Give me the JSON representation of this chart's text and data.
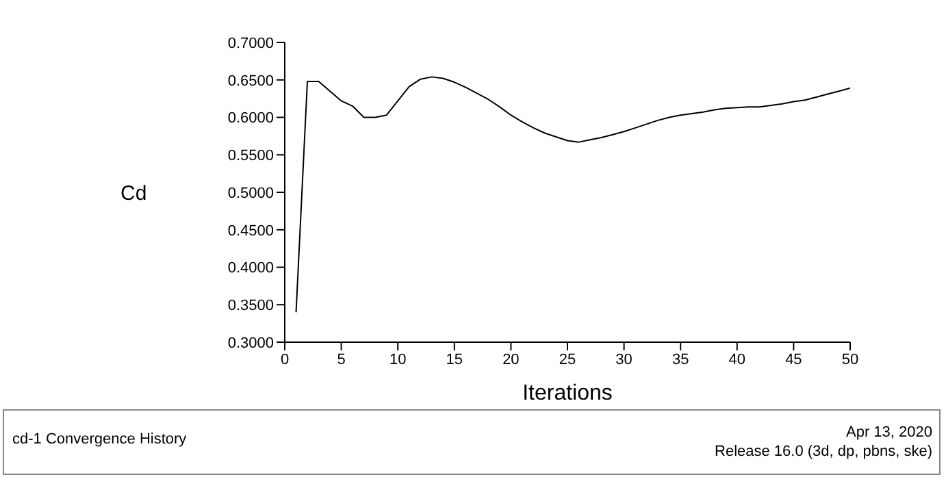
{
  "chart_data": {
    "type": "line",
    "xlabel": "Iterations",
    "ylabel": "Cd",
    "x": [
      1,
      2,
      3,
      4,
      5,
      6,
      7,
      8,
      9,
      10,
      11,
      12,
      13,
      14,
      15,
      16,
      17,
      18,
      19,
      20,
      21,
      22,
      23,
      24,
      25,
      26,
      27,
      28,
      29,
      30,
      31,
      32,
      33,
      34,
      35,
      36,
      37,
      38,
      39,
      40,
      41,
      42,
      43,
      44,
      45,
      46,
      47,
      48,
      49,
      50
    ],
    "series": [
      {
        "color": "#000000",
        "values": [
          0.34,
          0.648,
          0.648,
          0.635,
          0.622,
          0.615,
          0.6,
          0.6,
          0.603,
          0.622,
          0.641,
          0.651,
          0.654,
          0.652,
          0.647,
          0.64,
          0.632,
          0.624,
          0.614,
          0.603,
          0.594,
          0.586,
          0.579,
          0.574,
          0.569,
          0.567,
          0.57,
          0.573,
          0.577,
          0.581,
          0.586,
          0.591,
          0.596,
          0.6,
          0.603,
          0.605,
          0.607,
          0.61,
          0.612,
          0.613,
          0.614,
          0.614,
          0.616,
          0.618,
          0.621,
          0.623,
          0.627,
          0.631,
          0.635,
          0.639
        ]
      }
    ],
    "xlim": [
      0,
      50
    ],
    "xticks": [
      0,
      5,
      10,
      15,
      20,
      25,
      30,
      35,
      40,
      45,
      50
    ],
    "ylim": [
      0.3,
      0.7
    ],
    "yticks": [
      {
        "value": 0.3,
        "label": "0.3000"
      },
      {
        "value": 0.35,
        "label": "0.3500"
      },
      {
        "value": 0.4,
        "label": "0.4000"
      },
      {
        "value": 0.45,
        "label": "0.4500"
      },
      {
        "value": 0.5,
        "label": "0.5000"
      },
      {
        "value": 0.55,
        "label": "0.5500"
      },
      {
        "value": 0.6,
        "label": "0.6000"
      },
      {
        "value": 0.65,
        "label": "0.6500"
      },
      {
        "value": 0.7,
        "label": "0.7000"
      }
    ],
    "grid": false,
    "legend": false,
    "marker": "none",
    "line_style": "solid",
    "annotations": [
      "cd-1 Convergence History",
      "Apr 13, 2020",
      "Release 16.0 (3d, dp, pbns, ske)"
    ]
  }
}
